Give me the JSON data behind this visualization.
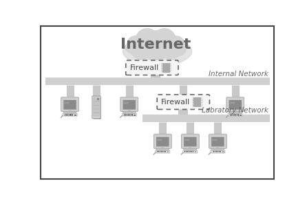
{
  "background_color": "#ffffff",
  "border_color": "#444444",
  "cloud_color": "#d4d4d4",
  "cloud_shadow_color": "#c0c0c0",
  "cloud_text": "Internet",
  "cloud_text_color": "#666666",
  "firewall1_label": "Firewall",
  "firewall2_label": "Firewall",
  "internal_network_label": "Internal Network",
  "lab_network_label": "Labratory Network",
  "network_bar_color": "#d0d0d0",
  "connector_color": "#c0c0c0",
  "dashed_box_color": "#666666",
  "monitor_body_color": "#c8c8c8",
  "monitor_screen_color": "#8a8a8a",
  "monitor_base_color": "#b8b8b8",
  "server_color": "#cccccc",
  "fw_zigzag_color": "#aaaaaa",
  "label_color": "#666666",
  "label_fontsize": 7,
  "cloud_fontsize": 16,
  "firewall_fontsize": 8,
  "net_label_fontsize": 7.5
}
